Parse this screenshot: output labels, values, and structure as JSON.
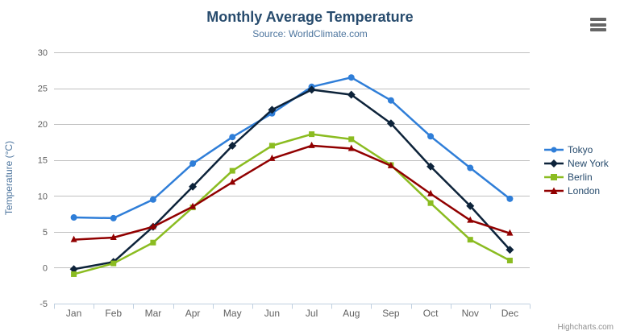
{
  "chart": {
    "title": "Monthly Average Temperature",
    "subtitle": "Source: WorldClimate.com",
    "credits_label": "Highcharts.com",
    "colors": {
      "title": "#274b6d",
      "subtitle": "#4d759e",
      "axis_title": "#4d759e",
      "tick_label": "#606060",
      "grid_line": "#c0c0c0",
      "axis_line": "#c0d0e0",
      "legend_text": "#274b6d",
      "menu_icon": "#666666",
      "credit_text": "#909090"
    }
  },
  "chart_data": {
    "type": "line",
    "title": "Monthly Average Temperature",
    "subtitle": "Source: WorldClimate.com",
    "xlabel": "",
    "ylabel": "Temperature (°C)",
    "categories": [
      "Jan",
      "Feb",
      "Mar",
      "Apr",
      "May",
      "Jun",
      "Jul",
      "Aug",
      "Sep",
      "Oct",
      "Nov",
      "Dec"
    ],
    "ylim": [
      -5,
      30
    ],
    "yticks": [
      -5,
      0,
      5,
      10,
      15,
      20,
      25,
      30
    ],
    "grid": true,
    "legend_position": "right",
    "series": [
      {
        "name": "Tokyo",
        "color": "#2f7ed8",
        "marker": "circle",
        "values": [
          7.0,
          6.9,
          9.5,
          14.5,
          18.2,
          21.5,
          25.2,
          26.5,
          23.3,
          18.3,
          13.9,
          9.6
        ]
      },
      {
        "name": "New York",
        "color": "#0d233a",
        "marker": "diamond",
        "values": [
          -0.2,
          0.8,
          5.7,
          11.3,
          17.0,
          22.0,
          24.8,
          24.1,
          20.1,
          14.1,
          8.6,
          2.5
        ]
      },
      {
        "name": "Berlin",
        "color": "#8bbc21",
        "marker": "square",
        "values": [
          -0.9,
          0.6,
          3.5,
          8.4,
          13.5,
          17.0,
          18.6,
          17.9,
          14.3,
          9.0,
          3.9,
          1.0
        ]
      },
      {
        "name": "London",
        "color": "#910000",
        "marker": "triangle",
        "values": [
          3.9,
          4.2,
          5.7,
          8.5,
          11.9,
          15.2,
          17.0,
          16.6,
          14.2,
          10.3,
          6.6,
          4.8
        ]
      }
    ]
  }
}
